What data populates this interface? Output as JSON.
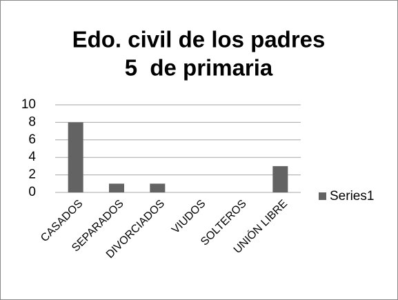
{
  "chart_data": {
    "type": "bar",
    "title": [
      "Edo. civil de los padres",
      "5  de primaria"
    ],
    "categories": [
      "CASADOS",
      "SEPARADOS",
      "DIVORCIADOS",
      "VIUDOS",
      "SOLTEROS",
      "UNIÓN LIBRE"
    ],
    "series": [
      {
        "name": "Series1",
        "color": "#636363",
        "values": [
          8,
          1,
          1,
          0,
          0,
          3
        ]
      }
    ],
    "ylim": [
      0,
      10
    ],
    "yticks": [
      0,
      2,
      4,
      6,
      8,
      10
    ],
    "grid": true,
    "legend": "right"
  }
}
